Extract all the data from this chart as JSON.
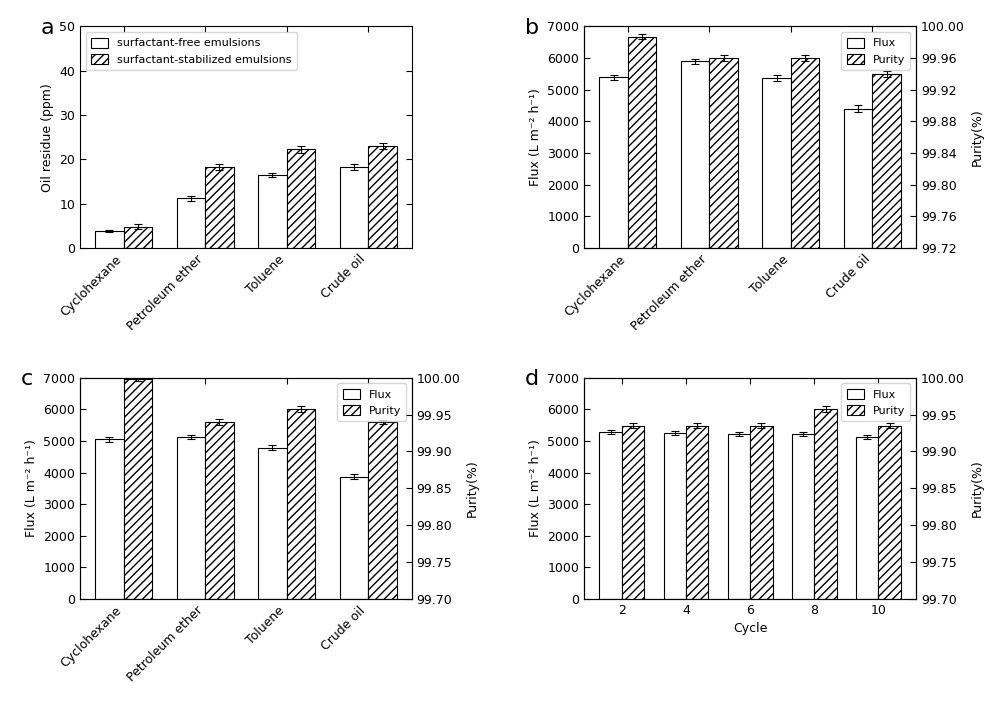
{
  "panel_a": {
    "categories": [
      "Cyclohexane",
      "Petroleum ether",
      "Toluene",
      "Crude oil"
    ],
    "free_values": [
      3.8,
      11.2,
      16.5,
      18.2
    ],
    "free_errors": [
      0.3,
      0.6,
      0.4,
      0.7
    ],
    "stab_values": [
      4.8,
      18.2,
      22.3,
      23.0
    ],
    "stab_errors": [
      0.5,
      0.7,
      0.8,
      0.6
    ],
    "ylabel": "Oil residue (ppm)",
    "ylim": [
      0,
      50
    ],
    "yticks": [
      0,
      10,
      20,
      30,
      40,
      50
    ],
    "label": "a"
  },
  "panel_b": {
    "categories": [
      "Cyclohexane",
      "Petroleum ether",
      "Toluene",
      "Crude oil"
    ],
    "flux_values": [
      5400,
      5900,
      5370,
      4400
    ],
    "flux_errors": [
      80,
      80,
      80,
      110
    ],
    "purity_values": [
      99.987,
      99.96,
      99.96,
      99.94
    ],
    "purity_errors": [
      0.003,
      0.004,
      0.004,
      0.004
    ],
    "ylabel_left": "Flux (L m⁻² h⁻¹)",
    "ylabel_right": "Purity(%)",
    "ylim_left": [
      0,
      7000
    ],
    "ylim_right": [
      99.72,
      100.0
    ],
    "yticks_left": [
      0,
      1000,
      2000,
      3000,
      4000,
      5000,
      6000,
      7000
    ],
    "yticks_right": [
      99.72,
      99.76,
      99.8,
      99.84,
      99.88,
      99.92,
      99.96,
      100.0
    ],
    "label": "b"
  },
  "panel_c": {
    "categories": [
      "Cyclohexane",
      "Petroleum ether",
      "Toluene",
      "Crude oil"
    ],
    "flux_values": [
      5050,
      5130,
      4780,
      3870
    ],
    "flux_errors": [
      80,
      70,
      80,
      80
    ],
    "purity_values": [
      99.998,
      99.94,
      99.957,
      99.94
    ],
    "purity_errors": [
      0.002,
      0.004,
      0.004,
      0.003
    ],
    "ylabel_left": "Flux (L m⁻² h⁻¹)",
    "ylabel_right": "Purity(%)",
    "ylim_left": [
      0,
      7000
    ],
    "ylim_right": [
      99.7,
      100.0
    ],
    "yticks_left": [
      0,
      1000,
      2000,
      3000,
      4000,
      5000,
      6000,
      7000
    ],
    "yticks_right": [
      99.7,
      99.75,
      99.8,
      99.85,
      99.9,
      99.95,
      100.0
    ],
    "label": "c"
  },
  "panel_d": {
    "categories": [
      2,
      4,
      6,
      8,
      10
    ],
    "flux_values": [
      5280,
      5260,
      5220,
      5220,
      5130
    ],
    "flux_errors": [
      55,
      65,
      60,
      60,
      65
    ],
    "purity_values": [
      99.935,
      99.935,
      99.935,
      99.957,
      99.935
    ],
    "purity_errors": [
      0.003,
      0.003,
      0.003,
      0.004,
      0.003
    ],
    "ylabel_left": "Flux (L m⁻² h⁻¹)",
    "ylabel_right": "Purity(%)",
    "xlabel": "Cycle",
    "ylim_left": [
      0,
      7000
    ],
    "ylim_right": [
      99.7,
      100.0
    ],
    "yticks_left": [
      0,
      1000,
      2000,
      3000,
      4000,
      5000,
      6000,
      7000
    ],
    "yticks_right": [
      99.7,
      99.75,
      99.8,
      99.85,
      99.9,
      99.95,
      100.0
    ],
    "label": "d"
  },
  "hatch_pattern": "////",
  "bar_width": 0.35,
  "bar_edgecolor": "black",
  "figure_facecolor": "white",
  "font_size": 9,
  "label_fontsize": 16
}
